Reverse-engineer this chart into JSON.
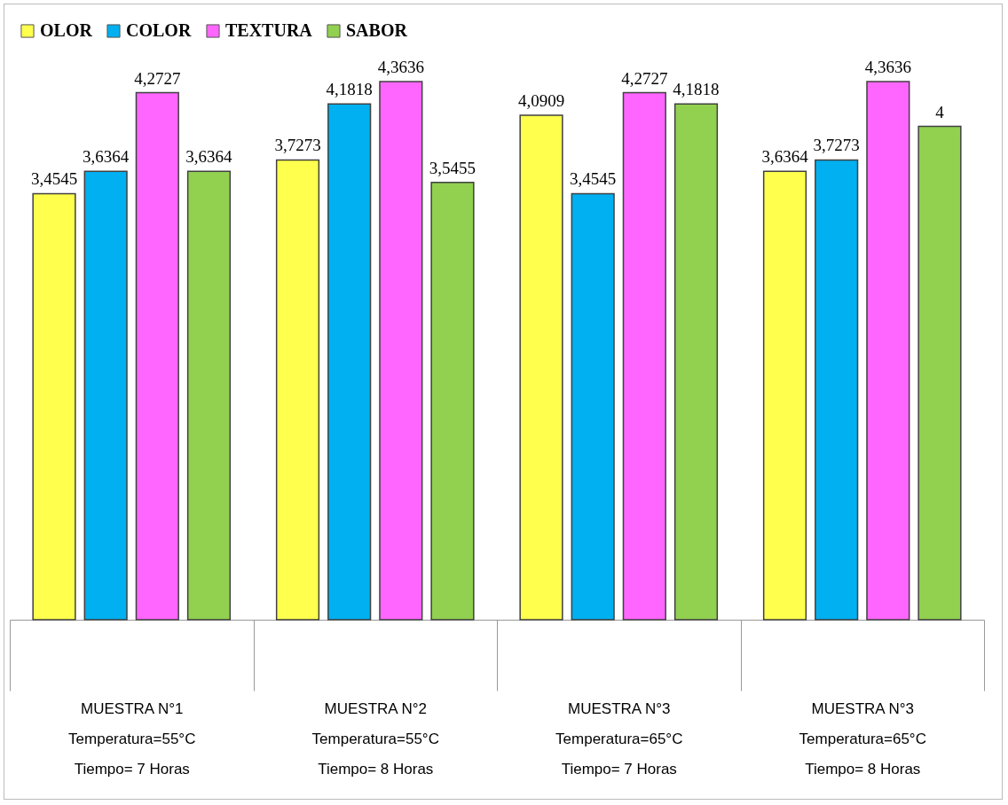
{
  "chart_data": {
    "type": "bar",
    "categories": [
      "MUESTRA N°1\nTemperatura=55°C\nTiempo= 7 Horas",
      "MUESTRA N°2\nTemperatura=55°C\nTiempo= 8 Horas",
      "MUESTRA N°3\nTemperatura=65°C\nTiempo= 7 Horas",
      "MUESTRA N°3\nTemperatura=65°C\nTiempo= 8 Horas"
    ],
    "series": [
      {
        "name": "OLOR",
        "color": "#ffff4d",
        "values": [
          3.4545,
          3.7273,
          4.0909,
          3.6364
        ],
        "value_labels": [
          "3,4545",
          "3,7273",
          "4,0909",
          "3,6364"
        ]
      },
      {
        "name": "COLOR",
        "color": "#00b0f0",
        "values": [
          3.6364,
          4.1818,
          3.4545,
          3.7273
        ],
        "value_labels": [
          "3,6364",
          "4,1818",
          "3,4545",
          "3,7273"
        ]
      },
      {
        "name": "TEXTURA",
        "color": "#ff66ff",
        "values": [
          4.2727,
          4.3636,
          4.2727,
          4.3636
        ],
        "value_labels": [
          "4,2727",
          "4,3636",
          "4,2727",
          "4,3636"
        ]
      },
      {
        "name": "SABOR",
        "color": "#92d050",
        "values": [
          3.6364,
          3.5455,
          4.1818,
          4
        ],
        "value_labels": [
          "3,6364",
          "3,5455",
          "4,1818",
          "4"
        ]
      }
    ],
    "legend": "top",
    "grid": false
  }
}
